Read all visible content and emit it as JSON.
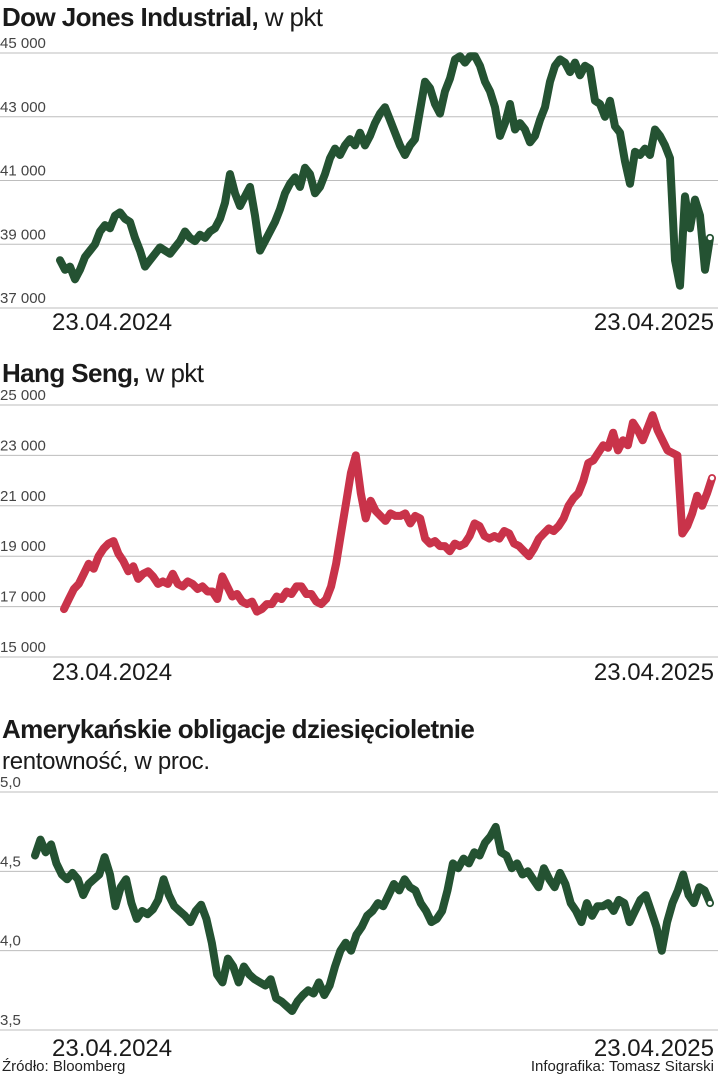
{
  "footer": {
    "source": "Źródło: Bloomberg",
    "credit": "Infografika: Tomasz Sitarski"
  },
  "chart_data": [
    {
      "type": "line",
      "title": "Dow Jones Industrial,",
      "unit": "w pkt",
      "subtitle": "",
      "x_start_label": "23.04.2024",
      "x_end_label": "23.04.2025",
      "ylim": [
        37000,
        45000
      ],
      "yticks": [
        37000,
        39000,
        41000,
        43000,
        45000
      ],
      "ytick_labels": [
        "37 000",
        "39 000",
        "41 000",
        "43 000",
        "45 000"
      ],
      "grid": true,
      "color": "#245232",
      "values": [
        38500,
        38200,
        38300,
        37900,
        38200,
        38600,
        38800,
        39000,
        39400,
        39600,
        39500,
        39900,
        40000,
        39800,
        39700,
        39200,
        38800,
        38300,
        38500,
        38700,
        38900,
        38800,
        38700,
        38900,
        39100,
        39400,
        39200,
        39100,
        39300,
        39200,
        39400,
        39500,
        39800,
        40300,
        41200,
        40600,
        40200,
        40500,
        40800,
        39900,
        38800,
        39100,
        39400,
        39700,
        40100,
        40600,
        40900,
        41100,
        40800,
        41400,
        41200,
        40600,
        40800,
        41200,
        41700,
        42000,
        41800,
        42100,
        42300,
        42100,
        42500,
        42100,
        42400,
        42800,
        43100,
        43300,
        42900,
        42500,
        42100,
        41800,
        42100,
        42300,
        43200,
        44100,
        43900,
        43400,
        43100,
        43800,
        44200,
        44800,
        44900,
        44700,
        44900,
        44900,
        44600,
        44100,
        43800,
        43300,
        42400,
        42800,
        43400,
        42600,
        42800,
        42600,
        42200,
        42400,
        42900,
        43300,
        44100,
        44600,
        44800,
        44700,
        44400,
        44700,
        44300,
        44600,
        44500,
        43500,
        43400,
        43000,
        43500,
        42700,
        42500,
        41600,
        40900,
        41900,
        41800,
        42000,
        41800,
        42600,
        42400,
        42100,
        41700,
        38500,
        37700,
        40500,
        39500,
        40400,
        39900,
        38200,
        39200
      ]
    },
    {
      "type": "line",
      "title": "Hang Seng,",
      "unit": "w pkt",
      "subtitle": "",
      "x_start_label": "23.04.2024",
      "x_end_label": "23.04.2025",
      "ylim": [
        15000,
        25000
      ],
      "yticks": [
        15000,
        17000,
        19000,
        21000,
        23000,
        25000
      ],
      "ytick_labels": [
        "15 000",
        "17 000",
        "19 000",
        "21 000",
        "23 000",
        "25 000"
      ],
      "grid": true,
      "color": "#c9334a",
      "values": [
        16900,
        17300,
        17700,
        17900,
        18300,
        18700,
        18500,
        19000,
        19300,
        19500,
        19600,
        19100,
        18800,
        18400,
        18600,
        18100,
        18300,
        18400,
        18200,
        17900,
        18000,
        17900,
        18300,
        17900,
        17800,
        18000,
        17900,
        17700,
        17800,
        17600,
        17600,
        17300,
        18200,
        17800,
        17400,
        17500,
        17200,
        17100,
        17200,
        16800,
        16900,
        17100,
        17100,
        17400,
        17300,
        17600,
        17500,
        17800,
        17800,
        17500,
        17500,
        17200,
        17100,
        17300,
        17800,
        18700,
        19900,
        21100,
        22300,
        23000,
        21500,
        20500,
        21200,
        20800,
        20600,
        20400,
        20700,
        20600,
        20600,
        20700,
        20300,
        20600,
        20500,
        19700,
        19500,
        19600,
        19400,
        19400,
        19200,
        19500,
        19400,
        19500,
        19800,
        20300,
        20200,
        19800,
        19700,
        19800,
        19700,
        20000,
        19900,
        19500,
        19400,
        19200,
        19000,
        19300,
        19700,
        19900,
        20100,
        20000,
        20200,
        20500,
        21000,
        21300,
        21500,
        22000,
        22700,
        22800,
        23100,
        23400,
        23300,
        23900,
        23200,
        23600,
        23400,
        24300,
        24000,
        23600,
        24100,
        24600,
        24000,
        23600,
        23200,
        23100,
        23000,
        19900,
        20200,
        20700,
        21400,
        21000,
        21500,
        22100
      ]
    },
    {
      "type": "line",
      "title": "Amerykańskie obligacje dziesięcioletnie",
      "unit": "",
      "subtitle": "rentowność, w proc.",
      "x_start_label": "23.04.2024",
      "x_end_label": "23.04.2025",
      "ylim": [
        3.5,
        5.0
      ],
      "yticks": [
        3.5,
        4.0,
        4.5,
        5.0
      ],
      "ytick_labels": [
        "3,5",
        "4,0",
        "4,5",
        "5,0"
      ],
      "grid": true,
      "color": "#245232",
      "values": [
        4.6,
        4.7,
        4.62,
        4.67,
        4.55,
        4.48,
        4.45,
        4.49,
        4.45,
        4.35,
        4.42,
        4.45,
        4.48,
        4.59,
        4.48,
        4.28,
        4.4,
        4.45,
        4.3,
        4.2,
        4.25,
        4.23,
        4.26,
        4.32,
        4.45,
        4.35,
        4.28,
        4.25,
        4.22,
        4.18,
        4.25,
        4.29,
        4.2,
        4.05,
        3.85,
        3.8,
        3.95,
        3.9,
        3.8,
        3.9,
        3.85,
        3.82,
        3.8,
        3.78,
        3.82,
        3.7,
        3.68,
        3.65,
        3.62,
        3.68,
        3.72,
        3.75,
        3.73,
        3.8,
        3.72,
        3.78,
        3.9,
        4.0,
        4.05,
        4.0,
        4.1,
        4.15,
        4.22,
        4.25,
        4.3,
        4.28,
        4.35,
        4.42,
        4.38,
        4.45,
        4.4,
        4.38,
        4.3,
        4.25,
        4.18,
        4.2,
        4.25,
        4.38,
        4.55,
        4.52,
        4.58,
        4.55,
        4.62,
        4.6,
        4.68,
        4.72,
        4.78,
        4.62,
        4.6,
        4.52,
        4.55,
        4.48,
        4.5,
        4.45,
        4.4,
        4.52,
        4.45,
        4.4,
        4.49,
        4.42,
        4.3,
        4.25,
        4.18,
        4.3,
        4.22,
        4.28,
        4.28,
        4.3,
        4.25,
        4.32,
        4.3,
        4.18,
        4.25,
        4.32,
        4.35,
        4.25,
        4.15,
        4.0,
        4.18,
        4.3,
        4.38,
        4.48,
        4.35,
        4.3,
        4.4,
        4.38,
        4.3
      ]
    }
  ]
}
